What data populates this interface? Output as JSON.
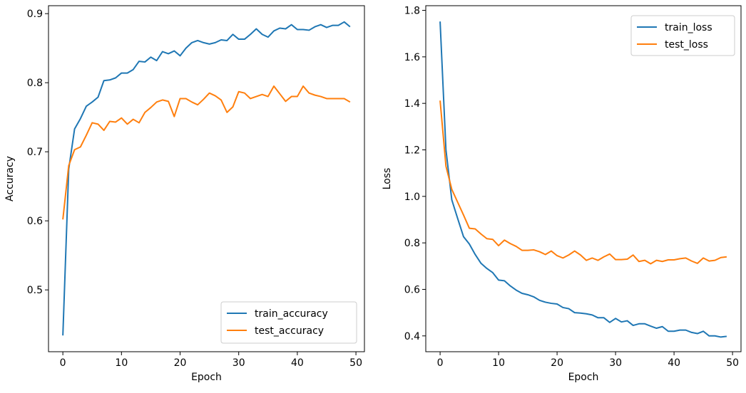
{
  "chart_data": [
    {
      "type": "line",
      "xlabel": "Epoch",
      "ylabel": "Accuracy",
      "xlim": [
        -2.45,
        51.45
      ],
      "ylim": [
        0.4105,
        0.9115
      ],
      "xticks": [
        0,
        10,
        20,
        30,
        40,
        50
      ],
      "yticks": [
        0.5,
        0.6,
        0.7,
        0.8,
        0.9
      ],
      "legend": "lower-right",
      "grid": false,
      "x": [
        0,
        1,
        2,
        3,
        4,
        5,
        6,
        7,
        8,
        9,
        10,
        11,
        12,
        13,
        14,
        15,
        16,
        17,
        18,
        19,
        20,
        21,
        22,
        23,
        24,
        25,
        26,
        27,
        28,
        29,
        30,
        31,
        32,
        33,
        34,
        35,
        36,
        37,
        38,
        39,
        40,
        41,
        42,
        43,
        44,
        45,
        46,
        47,
        48,
        49
      ],
      "series": [
        {
          "name": "train_accuracy",
          "color": "#1f77b4",
          "values": [
            0.434,
            0.675,
            0.733,
            0.748,
            0.766,
            0.772,
            0.779,
            0.803,
            0.804,
            0.807,
            0.814,
            0.814,
            0.819,
            0.831,
            0.83,
            0.837,
            0.832,
            0.845,
            0.842,
            0.846,
            0.839,
            0.85,
            0.858,
            0.861,
            0.858,
            0.856,
            0.858,
            0.862,
            0.861,
            0.87,
            0.863,
            0.863,
            0.87,
            0.878,
            0.87,
            0.866,
            0.875,
            0.879,
            0.878,
            0.884,
            0.877,
            0.877,
            0.876,
            0.881,
            0.884,
            0.88,
            0.883,
            0.883,
            0.888,
            0.881
          ]
        },
        {
          "name": "test_accuracy",
          "color": "#ff7f0e",
          "values": [
            0.602,
            0.68,
            0.703,
            0.707,
            0.724,
            0.742,
            0.74,
            0.731,
            0.744,
            0.743,
            0.749,
            0.74,
            0.747,
            0.742,
            0.757,
            0.764,
            0.772,
            0.775,
            0.773,
            0.751,
            0.777,
            0.777,
            0.772,
            0.768,
            0.776,
            0.785,
            0.781,
            0.775,
            0.757,
            0.765,
            0.787,
            0.785,
            0.777,
            0.78,
            0.783,
            0.78,
            0.795,
            0.784,
            0.773,
            0.78,
            0.78,
            0.795,
            0.785,
            0.782,
            0.78,
            0.777,
            0.777,
            0.777,
            0.777,
            0.772
          ]
        }
      ]
    },
    {
      "type": "line",
      "xlabel": "Epoch",
      "ylabel": "Loss",
      "xlim": [
        -2.45,
        51.45
      ],
      "ylim": [
        0.332,
        1.82
      ],
      "xticks": [
        0,
        10,
        20,
        30,
        40,
        50
      ],
      "yticks": [
        0.4,
        0.6,
        0.8,
        1.0,
        1.2,
        1.4,
        1.6,
        1.8
      ],
      "legend": "top-right",
      "grid": false,
      "x": [
        0,
        1,
        2,
        3,
        4,
        5,
        6,
        7,
        8,
        9,
        10,
        11,
        12,
        13,
        14,
        15,
        16,
        17,
        18,
        19,
        20,
        21,
        22,
        23,
        24,
        25,
        26,
        27,
        28,
        29,
        30,
        31,
        32,
        33,
        34,
        35,
        36,
        37,
        38,
        39,
        40,
        41,
        42,
        43,
        44,
        45,
        46,
        47,
        48,
        49
      ],
      "series": [
        {
          "name": "train_loss",
          "color": "#1f77b4",
          "values": [
            1.752,
            1.2,
            0.985,
            0.905,
            0.827,
            0.795,
            0.75,
            0.712,
            0.69,
            0.672,
            0.64,
            0.637,
            0.615,
            0.597,
            0.583,
            0.577,
            0.568,
            0.553,
            0.545,
            0.54,
            0.537,
            0.522,
            0.517,
            0.5,
            0.498,
            0.495,
            0.49,
            0.478,
            0.478,
            0.458,
            0.475,
            0.46,
            0.465,
            0.445,
            0.452,
            0.452,
            0.442,
            0.433,
            0.44,
            0.42,
            0.42,
            0.425,
            0.425,
            0.415,
            0.41,
            0.42,
            0.4,
            0.4,
            0.395,
            0.398
          ]
        },
        {
          "name": "test_loss",
          "color": "#ff7f0e",
          "values": [
            1.412,
            1.13,
            1.03,
            0.975,
            0.92,
            0.863,
            0.86,
            0.838,
            0.818,
            0.815,
            0.788,
            0.812,
            0.797,
            0.785,
            0.768,
            0.768,
            0.77,
            0.762,
            0.75,
            0.765,
            0.745,
            0.735,
            0.748,
            0.765,
            0.748,
            0.725,
            0.735,
            0.725,
            0.74,
            0.752,
            0.728,
            0.728,
            0.73,
            0.748,
            0.72,
            0.725,
            0.71,
            0.725,
            0.72,
            0.727,
            0.727,
            0.732,
            0.735,
            0.722,
            0.712,
            0.735,
            0.722,
            0.725,
            0.737,
            0.74
          ]
        }
      ]
    }
  ]
}
